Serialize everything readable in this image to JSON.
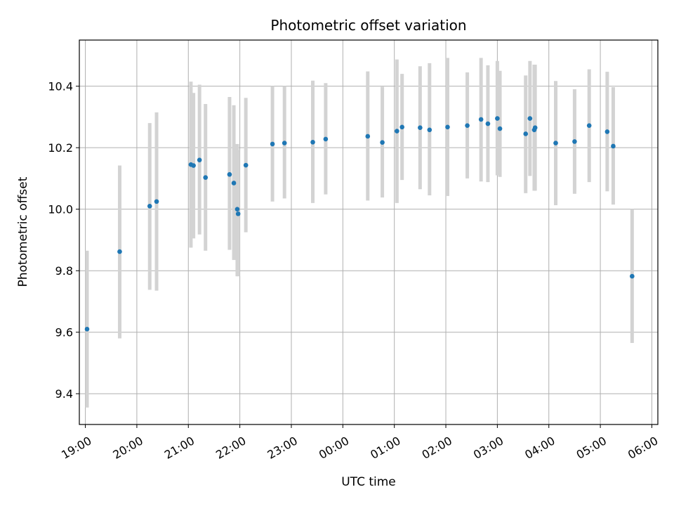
{
  "chart_data": {
    "type": "scatter",
    "title": "Photometric offset variation",
    "xlabel": "UTC time",
    "ylabel": "Photometric offset",
    "x_ticks": [
      "19:00",
      "20:00",
      "21:00",
      "22:00",
      "23:00",
      "00:00",
      "01:00",
      "02:00",
      "03:00",
      "04:00",
      "05:00",
      "06:00"
    ],
    "x_tick_hours": [
      19,
      20,
      21,
      22,
      23,
      24,
      25,
      26,
      27,
      28,
      29,
      30
    ],
    "y_ticks": [
      "9.4",
      "9.6",
      "9.8",
      "10.0",
      "10.2",
      "10.4"
    ],
    "y_tick_values": [
      9.4,
      9.6,
      9.8,
      10.0,
      10.2,
      10.4
    ],
    "xlim": [
      "18:53",
      "06:07"
    ],
    "ylim": [
      9.3,
      10.55
    ],
    "grid": true,
    "colors": {
      "points": "#1f77b4",
      "errorbars": "#d3d3d3",
      "grid": "#b0b0b0"
    },
    "points": [
      {
        "t": "19:02",
        "y": 9.61,
        "lo": 9.355,
        "hi": 9.865
      },
      {
        "t": "19:40",
        "y": 9.862,
        "lo": 9.58,
        "hi": 10.142
      },
      {
        "t": "20:15",
        "y": 10.01,
        "lo": 9.738,
        "hi": 10.28
      },
      {
        "t": "20:23",
        "y": 10.025,
        "lo": 9.735,
        "hi": 10.315
      },
      {
        "t": "21:03",
        "y": 10.145,
        "lo": 9.875,
        "hi": 10.415
      },
      {
        "t": "21:06",
        "y": 10.142,
        "lo": 9.905,
        "hi": 10.378
      },
      {
        "t": "21:13",
        "y": 10.16,
        "lo": 9.918,
        "hi": 10.405
      },
      {
        "t": "21:20",
        "y": 10.103,
        "lo": 9.865,
        "hi": 10.342
      },
      {
        "t": "21:48",
        "y": 10.113,
        "lo": 9.868,
        "hi": 10.365
      },
      {
        "t": "21:53",
        "y": 10.085,
        "lo": 9.835,
        "hi": 10.338
      },
      {
        "t": "21:57",
        "y": 10.0,
        "lo": 9.782,
        "hi": 10.212
      },
      {
        "t": "21:58",
        "y": 9.985,
        "lo": 9.782,
        "hi": 10.192
      },
      {
        "t": "22:07",
        "y": 10.143,
        "lo": 9.925,
        "hi": 10.362
      },
      {
        "t": "22:38",
        "y": 10.212,
        "lo": 10.025,
        "hi": 10.4
      },
      {
        "t": "22:52",
        "y": 10.215,
        "lo": 10.035,
        "hi": 10.4
      },
      {
        "t": "23:25",
        "y": 10.218,
        "lo": 10.02,
        "hi": 10.418
      },
      {
        "t": "23:40",
        "y": 10.228,
        "lo": 10.048,
        "hi": 10.41
      },
      {
        "t": "00:29",
        "y": 10.237,
        "lo": 10.028,
        "hi": 10.448
      },
      {
        "t": "00:46",
        "y": 10.217,
        "lo": 10.038,
        "hi": 10.398
      },
      {
        "t": "01:03",
        "y": 10.254,
        "lo": 10.02,
        "hi": 10.487
      },
      {
        "t": "01:09",
        "y": 10.267,
        "lo": 10.095,
        "hi": 10.44
      },
      {
        "t": "01:30",
        "y": 10.265,
        "lo": 10.065,
        "hi": 10.465
      },
      {
        "t": "01:41",
        "y": 10.258,
        "lo": 10.045,
        "hi": 10.475
      },
      {
        "t": "02:02",
        "y": 10.267,
        "lo": 10.043,
        "hi": 10.492
      },
      {
        "t": "02:25",
        "y": 10.272,
        "lo": 10.1,
        "hi": 10.445
      },
      {
        "t": "02:41",
        "y": 10.292,
        "lo": 10.09,
        "hi": 10.492
      },
      {
        "t": "02:49",
        "y": 10.278,
        "lo": 10.088,
        "hi": 10.468
      },
      {
        "t": "03:00",
        "y": 10.295,
        "lo": 10.11,
        "hi": 10.482
      },
      {
        "t": "03:03",
        "y": 10.262,
        "lo": 10.105,
        "hi": 10.45
      },
      {
        "t": "03:33",
        "y": 10.245,
        "lo": 10.052,
        "hi": 10.435
      },
      {
        "t": "03:38",
        "y": 10.295,
        "lo": 10.108,
        "hi": 10.482
      },
      {
        "t": "03:43",
        "y": 10.258,
        "lo": 10.06,
        "hi": 10.47
      },
      {
        "t": "03:44",
        "y": 10.265,
        "lo": 10.06,
        "hi": 10.47
      },
      {
        "t": "04:08",
        "y": 10.215,
        "lo": 10.013,
        "hi": 10.417
      },
      {
        "t": "04:30",
        "y": 10.22,
        "lo": 10.05,
        "hi": 10.39
      },
      {
        "t": "04:47",
        "y": 10.272,
        "lo": 10.088,
        "hi": 10.455
      },
      {
        "t": "05:08",
        "y": 10.252,
        "lo": 10.058,
        "hi": 10.447
      },
      {
        "t": "05:15",
        "y": 10.205,
        "lo": 10.015,
        "hi": 10.397
      },
      {
        "t": "05:37",
        "y": 9.782,
        "lo": 9.565,
        "hi": 10.0
      }
    ]
  }
}
